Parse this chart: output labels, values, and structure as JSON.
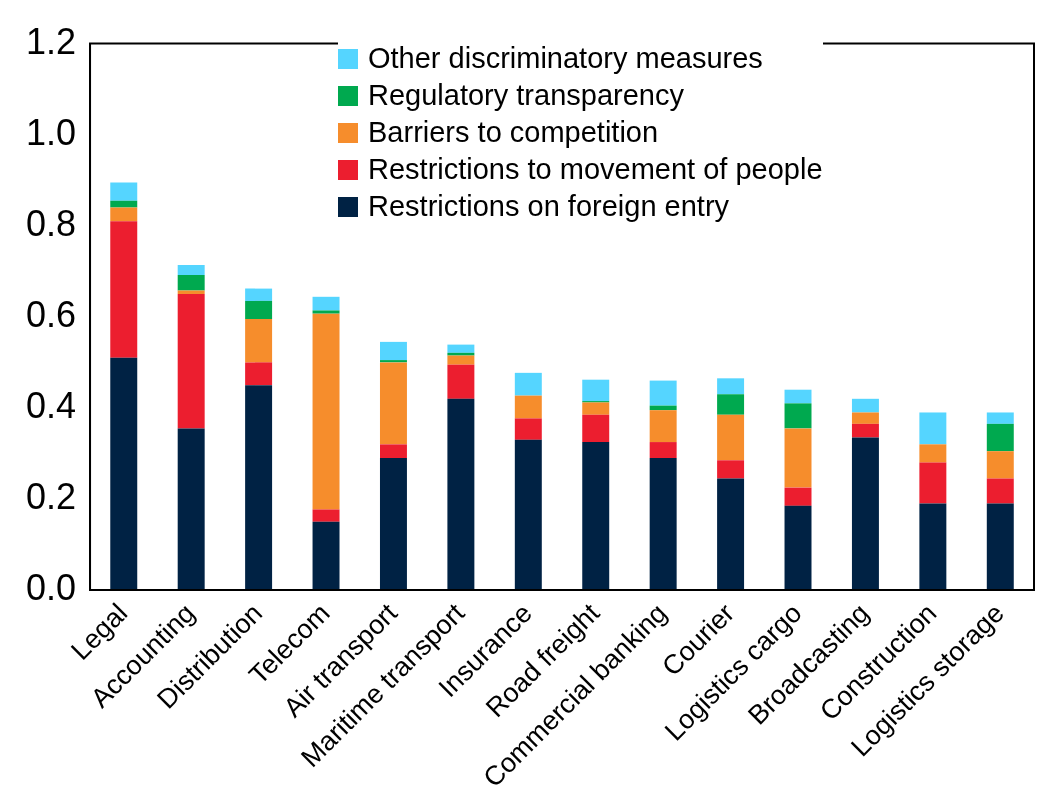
{
  "chart_data": {
    "type": "bar",
    "stacked": true,
    "categories": [
      "Legal",
      "Accounting",
      "Distribution",
      "Telecom",
      "Air transport",
      "Maritime transport",
      "Insurance",
      "Road freight",
      "Commercial banking",
      "Courier",
      "Logistics cargo",
      "Broadcasting",
      "Construction",
      "Logistics storage"
    ],
    "series": [
      {
        "name": "Restrictions on foreign entry",
        "color": "#002244",
        "values": [
          0.51,
          0.355,
          0.45,
          0.15,
          0.29,
          0.42,
          0.33,
          0.325,
          0.29,
          0.245,
          0.185,
          0.335,
          0.19,
          0.19
        ]
      },
      {
        "name": "Restrictions to movement of people",
        "color": "#ec1e2f",
        "values": [
          0.3,
          0.295,
          0.05,
          0.027,
          0.03,
          0.075,
          0.047,
          0.06,
          0.035,
          0.04,
          0.04,
          0.03,
          0.09,
          0.055
        ]
      },
      {
        "name": "Barriers to competition",
        "color": "#f68d2c",
        "values": [
          0.03,
          0.008,
          0.095,
          0.43,
          0.18,
          0.02,
          0.05,
          0.027,
          0.07,
          0.1,
          0.13,
          0.025,
          0.04,
          0.06
        ]
      },
      {
        "name": "Regulatory transparency",
        "color": "#00a94f",
        "values": [
          0.015,
          0.034,
          0.04,
          0.007,
          0.005,
          0.006,
          0,
          0.003,
          0.01,
          0.045,
          0.055,
          0,
          0,
          0.06
        ]
      },
      {
        "name": "Other discriminatory measures",
        "color": "#55d5ff",
        "values": [
          0.04,
          0.022,
          0.027,
          0.03,
          0.04,
          0.018,
          0.05,
          0.047,
          0.055,
          0.035,
          0.03,
          0.03,
          0.07,
          0.025
        ]
      }
    ],
    "ylim": [
      0,
      1.2
    ],
    "yticks": [
      {
        "value": 0,
        "label": "0.0"
      },
      {
        "value": 0.2,
        "label": "0.2"
      },
      {
        "value": 0.4,
        "label": "0.4"
      },
      {
        "value": 0.6,
        "label": "0.6"
      },
      {
        "value": 0.8,
        "label": "0.8"
      },
      {
        "value": 1.0,
        "label": "1.0"
      },
      {
        "value": 1.2,
        "label": "1.2"
      }
    ],
    "grid": false,
    "legend": "top"
  }
}
